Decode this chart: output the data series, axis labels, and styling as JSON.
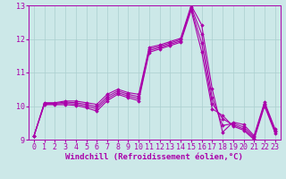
{
  "x": [
    0,
    1,
    2,
    3,
    4,
    5,
    6,
    7,
    8,
    9,
    10,
    11,
    12,
    13,
    14,
    15,
    16,
    17,
    18,
    19,
    20,
    21,
    22,
    23
  ],
  "line1": [
    9.1,
    10.1,
    10.1,
    10.15,
    10.15,
    10.1,
    10.05,
    10.35,
    10.5,
    10.4,
    10.35,
    11.75,
    11.82,
    11.92,
    12.02,
    13.0,
    12.42,
    10.52,
    9.22,
    9.52,
    9.45,
    9.12,
    10.12,
    9.32
  ],
  "line2": [
    9.1,
    10.08,
    10.08,
    10.12,
    10.1,
    10.05,
    9.98,
    10.28,
    10.45,
    10.35,
    10.28,
    11.7,
    11.78,
    11.88,
    11.98,
    12.95,
    12.15,
    10.25,
    9.42,
    9.48,
    9.38,
    9.08,
    10.08,
    9.28
  ],
  "line3": [
    9.1,
    10.06,
    10.06,
    10.08,
    10.06,
    10.0,
    9.92,
    10.22,
    10.4,
    10.3,
    10.22,
    11.65,
    11.74,
    11.84,
    11.94,
    12.9,
    11.88,
    10.08,
    9.62,
    9.44,
    9.32,
    9.04,
    10.04,
    9.24
  ],
  "line4": [
    9.1,
    10.04,
    10.04,
    10.04,
    10.02,
    9.95,
    9.85,
    10.16,
    10.35,
    10.25,
    10.16,
    11.6,
    11.7,
    11.8,
    11.9,
    12.85,
    11.62,
    9.92,
    9.72,
    9.4,
    9.28,
    9.0,
    10.0,
    9.2
  ],
  "line_color": "#aa00aa",
  "marker": "D",
  "marker_size": 1.8,
  "xlim_min": -0.5,
  "xlim_max": 23.5,
  "ylim_min": 9.0,
  "ylim_max": 13.0,
  "yticks": [
    9,
    10,
    11,
    12,
    13
  ],
  "xticks": [
    0,
    1,
    2,
    3,
    4,
    5,
    6,
    7,
    8,
    9,
    10,
    11,
    12,
    13,
    14,
    15,
    16,
    17,
    18,
    19,
    20,
    21,
    22,
    23
  ],
  "xlabel": "Windchill (Refroidissement éolien,°C)",
  "bg_color": "#cce8e8",
  "grid_color": "#aacfcf",
  "line_width": 0.8,
  "xlabel_fontsize": 6.5,
  "tick_fontsize": 6.0
}
